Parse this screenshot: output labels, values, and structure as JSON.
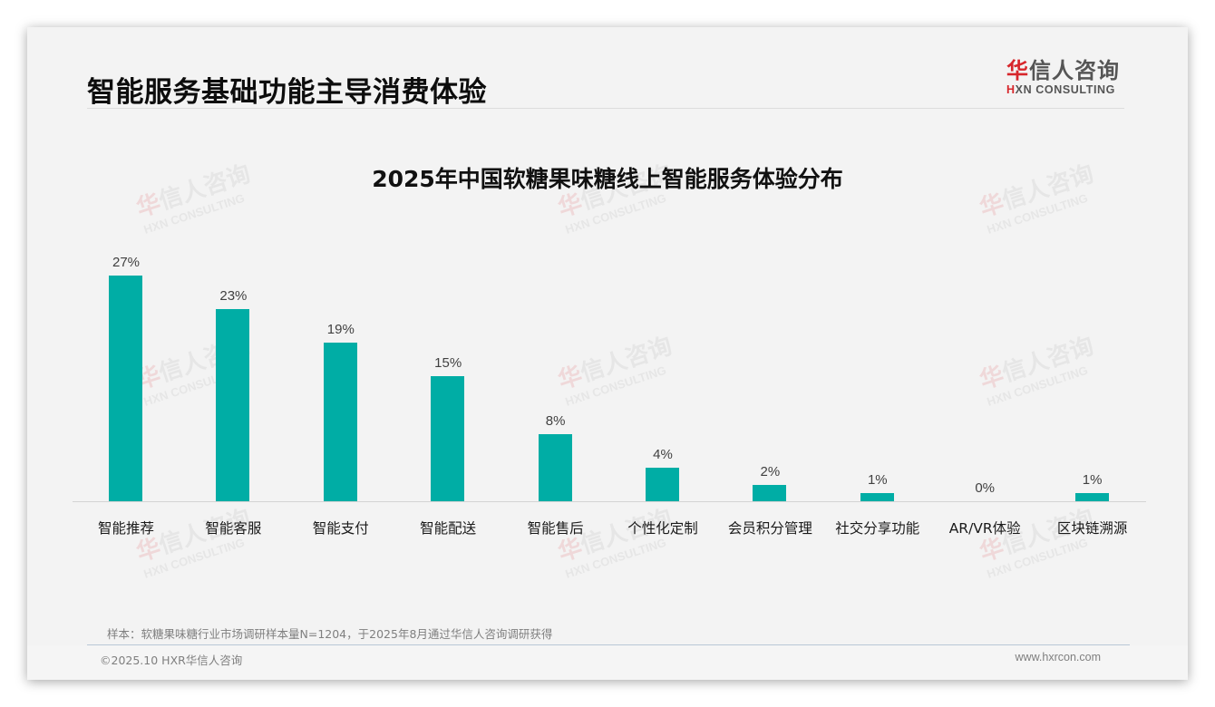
{
  "page": {
    "title": "智能服务基础功能主导消费体验",
    "logo": {
      "cn_red": "华",
      "cn_rest": "信人咨询",
      "en_mark": "H",
      "en_rest": "XN CONSULTING"
    },
    "footnote": "样本：软糖果味糖行业市场调研样本量N=1204，于2025年8月通过华信人咨询调研获得",
    "copyright": "©2025.10 HXR华信人咨询",
    "website": "www.hxrcon.com"
  },
  "watermark": {
    "cn_red": "华",
    "cn_rest": "信人咨询",
    "en": "HXN CONSULTING"
  },
  "colors": {
    "bar": "#00ada5",
    "logo_red": "#d7262b",
    "background": "#f3f3f3"
  },
  "chart_data": {
    "type": "bar",
    "title": "2025年中国软糖果味糖线上智能服务体验分布",
    "categories": [
      "智能推荐",
      "智能客服",
      "智能支付",
      "智能配送",
      "智能售后",
      "个性化定制",
      "会员积分管理",
      "社交分享功能",
      "AR/VR体验",
      "区块链溯源"
    ],
    "values": [
      27,
      23,
      19,
      15,
      8,
      4,
      2,
      1,
      0,
      1
    ],
    "value_labels": [
      "27%",
      "23%",
      "19%",
      "15%",
      "8%",
      "4%",
      "2%",
      "1%",
      "0%",
      "1%"
    ],
    "xlabel": "",
    "ylabel": "",
    "ylim": [
      0,
      27
    ],
    "grid": false,
    "legend": "none",
    "unit": "%"
  }
}
